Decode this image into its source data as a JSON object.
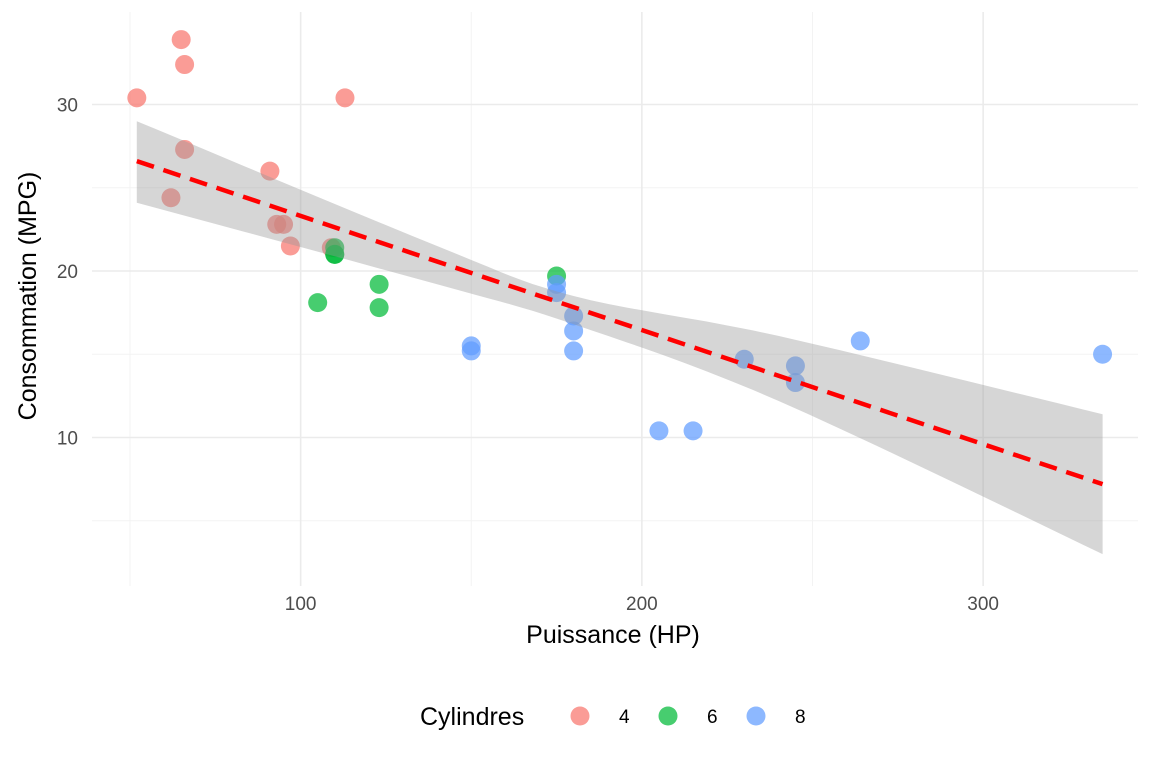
{
  "chart_data": {
    "type": "scatter",
    "title": "",
    "xlabel": "Puissance (HP)",
    "ylabel": "Consommation (MPG)",
    "xlim": [
      40,
      345
    ],
    "ylim": [
      3,
      35
    ],
    "x_ticks": [
      100,
      200,
      300
    ],
    "y_ticks": [
      10,
      20,
      30
    ],
    "grid": true,
    "legend": {
      "title": "Cylindres",
      "position": "bottom",
      "entries": [
        {
          "label": "4",
          "color": "#F8766D"
        },
        {
          "label": "6",
          "color": "#00BA38"
        },
        {
          "label": "8",
          "color": "#619CFF"
        }
      ]
    },
    "series": [
      {
        "name": "4",
        "color": "#F8766D",
        "points": [
          {
            "x": 52,
            "y": 30.4
          },
          {
            "x": 65,
            "y": 33.9
          },
          {
            "x": 66,
            "y": 32.4
          },
          {
            "x": 66,
            "y": 27.3
          },
          {
            "x": 62,
            "y": 24.4
          },
          {
            "x": 91,
            "y": 26.0
          },
          {
            "x": 93,
            "y": 22.8
          },
          {
            "x": 95,
            "y": 22.8
          },
          {
            "x": 97,
            "y": 21.5
          },
          {
            "x": 109,
            "y": 21.4
          },
          {
            "x": 113,
            "y": 30.4
          }
        ]
      },
      {
        "name": "6",
        "color": "#00BA38",
        "points": [
          {
            "x": 110,
            "y": 21.0
          },
          {
            "x": 110,
            "y": 21.0
          },
          {
            "x": 110,
            "y": 21.4
          },
          {
            "x": 105,
            "y": 18.1
          },
          {
            "x": 123,
            "y": 19.2
          },
          {
            "x": 123,
            "y": 17.8
          },
          {
            "x": 175,
            "y": 19.7
          }
        ]
      },
      {
        "name": "8",
        "color": "#619CFF",
        "points": [
          {
            "x": 175,
            "y": 18.7
          },
          {
            "x": 175,
            "y": 19.2
          },
          {
            "x": 180,
            "y": 17.3
          },
          {
            "x": 180,
            "y": 16.4
          },
          {
            "x": 180,
            "y": 15.2
          },
          {
            "x": 150,
            "y": 15.5
          },
          {
            "x": 150,
            "y": 15.2
          },
          {
            "x": 205,
            "y": 10.4
          },
          {
            "x": 215,
            "y": 10.4
          },
          {
            "x": 230,
            "y": 14.7
          },
          {
            "x": 245,
            "y": 14.3
          },
          {
            "x": 245,
            "y": 13.3
          },
          {
            "x": 264,
            "y": 15.8
          },
          {
            "x": 335,
            "y": 15.0
          }
        ]
      }
    ],
    "trend_line": {
      "method": "lm",
      "color": "#FF0000",
      "style": "dashed",
      "x_range": [
        52,
        335
      ],
      "y_at_start": 26.6,
      "y_at_end": 7.2,
      "confidence_band": {
        "color": "#999999",
        "lower": [
          {
            "x": 52,
            "y": 24.1
          },
          {
            "x": 140,
            "y": 19.2
          },
          {
            "x": 180,
            "y": 16.8
          },
          {
            "x": 240,
            "y": 12.2
          },
          {
            "x": 335,
            "y": 3.0
          }
        ],
        "upper": [
          {
            "x": 52,
            "y": 29.0
          },
          {
            "x": 140,
            "y": 21.5
          },
          {
            "x": 180,
            "y": 18.5
          },
          {
            "x": 240,
            "y": 16.1
          },
          {
            "x": 335,
            "y": 11.4
          }
        ]
      }
    }
  }
}
